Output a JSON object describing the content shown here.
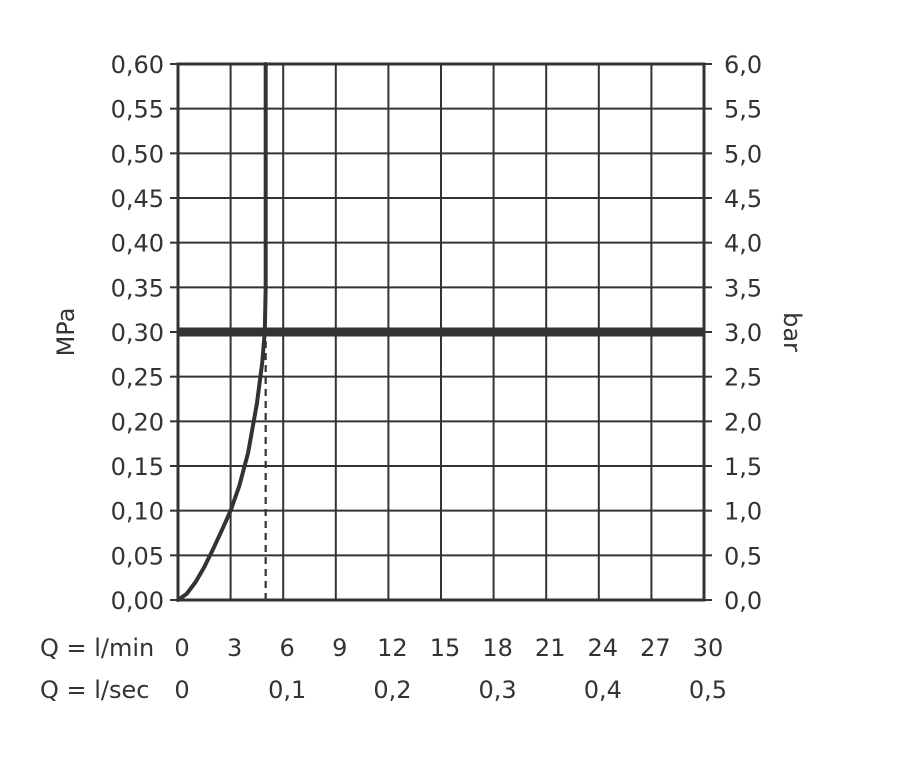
{
  "chart_data": {
    "type": "line",
    "title": "",
    "left_axis": {
      "label": "MPa",
      "ylim": [
        0,
        0.6
      ],
      "ticks": [
        0,
        0.05,
        0.1,
        0.15,
        0.2,
        0.25,
        0.3,
        0.35,
        0.4,
        0.45,
        0.5,
        0.55,
        0.6
      ],
      "tick_labels": [
        "0,00",
        "0,05",
        "0,10",
        "0,15",
        "0,20",
        "0,25",
        "0,30",
        "0,35",
        "0,40",
        "0,45",
        "0,50",
        "0,55",
        "0,60"
      ]
    },
    "right_axis": {
      "label": "bar",
      "ylim": [
        0,
        6
      ],
      "ticks": [
        0,
        0.5,
        1,
        1.5,
        2,
        2.5,
        3,
        3.5,
        4,
        4.5,
        5,
        5.5,
        6
      ],
      "tick_labels": [
        "0,0",
        "0,5",
        "1,0",
        "1,5",
        "2,0",
        "2,5",
        "3,0",
        "3,5",
        "4,0",
        "4,5",
        "5,0",
        "5,5",
        "6,0"
      ]
    },
    "x_axis_lmin": {
      "label": "Q = l/min",
      "xlim": [
        0,
        30
      ],
      "ticks": [
        0,
        3,
        6,
        9,
        12,
        15,
        18,
        21,
        24,
        27,
        30
      ],
      "tick_labels": [
        "0",
        "3",
        "6",
        "9",
        "12",
        "15",
        "18",
        "21",
        "24",
        "27",
        "30"
      ]
    },
    "x_axis_lsec": {
      "label": "Q = l/sec",
      "ticks_lmin": [
        0,
        6,
        12,
        18,
        24,
        30
      ],
      "tick_labels": [
        "0",
        "0,1",
        "0,2",
        "0,3",
        "0,4",
        "0,5"
      ]
    },
    "grid": true,
    "series": [
      {
        "style": "solid",
        "x": [
          0,
          0.5,
          1.0,
          1.5,
          2.0,
          2.5,
          3.0,
          3.5,
          4.0,
          4.5,
          4.8,
          4.95,
          5.0,
          5.0,
          5.0
        ],
        "y": [
          0,
          0.007,
          0.02,
          0.037,
          0.057,
          0.078,
          0.1,
          0.128,
          0.165,
          0.22,
          0.265,
          0.3,
          0.35,
          0.45,
          0.6
        ]
      }
    ],
    "reference_lines": [
      {
        "orientation": "horizontal",
        "y": 0.3,
        "style": "bold"
      },
      {
        "orientation": "vertical",
        "x": 5.0,
        "from": 0,
        "to": 0.3,
        "style": "dashed"
      }
    ]
  }
}
